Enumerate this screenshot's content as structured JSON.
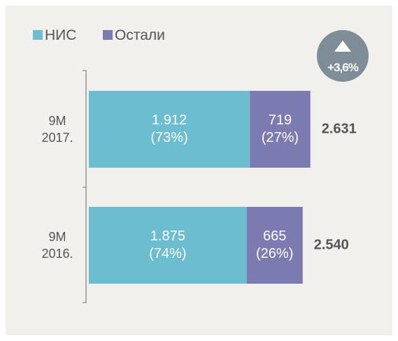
{
  "chart_data": {
    "type": "stacked_barh",
    "categories": [
      "9M 2017.",
      "9M 2016."
    ],
    "series": [
      {
        "name": "НИС",
        "color": "#6cbdd0",
        "values": [
          1912,
          1875
        ],
        "value_labels": [
          "1.912",
          "1.875"
        ],
        "percent_labels": [
          "(73%)",
          "(74%)"
        ]
      },
      {
        "name": "Остали",
        "color": "#7b7bb1",
        "values": [
          719,
          665
        ],
        "value_labels": [
          "719",
          "665"
        ],
        "percent_labels": [
          "(27%)",
          "(26%)"
        ]
      }
    ],
    "totals": {
      "values": [
        2631,
        2540
      ],
      "value_labels": [
        "2.631",
        "2.540"
      ]
    },
    "annotation": "+3,6%",
    "xlim": [
      0,
      2700
    ]
  }
}
